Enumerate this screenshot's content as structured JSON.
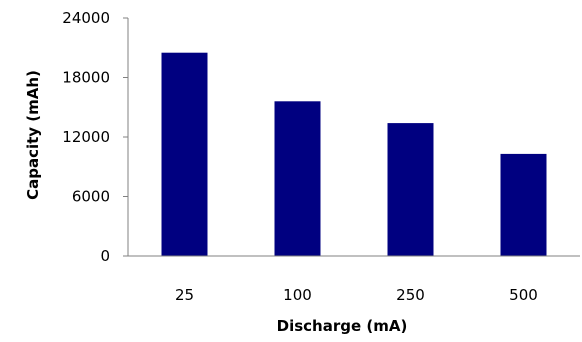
{
  "chart_data": {
    "type": "bar",
    "title": "",
    "xlabel": "Discharge (mA)",
    "ylabel": "Capacity (mAh)",
    "categories": [
      "25",
      "100",
      "250",
      "500"
    ],
    "values": [
      20500,
      15600,
      13400,
      10300
    ],
    "ylim": [
      0,
      24000
    ],
    "yticks": [
      "0",
      "6000",
      "12000",
      "18000",
      "24000"
    ],
    "grid": false,
    "legend": "none",
    "bar_color": "#000080",
    "axis_color": "#808080"
  }
}
